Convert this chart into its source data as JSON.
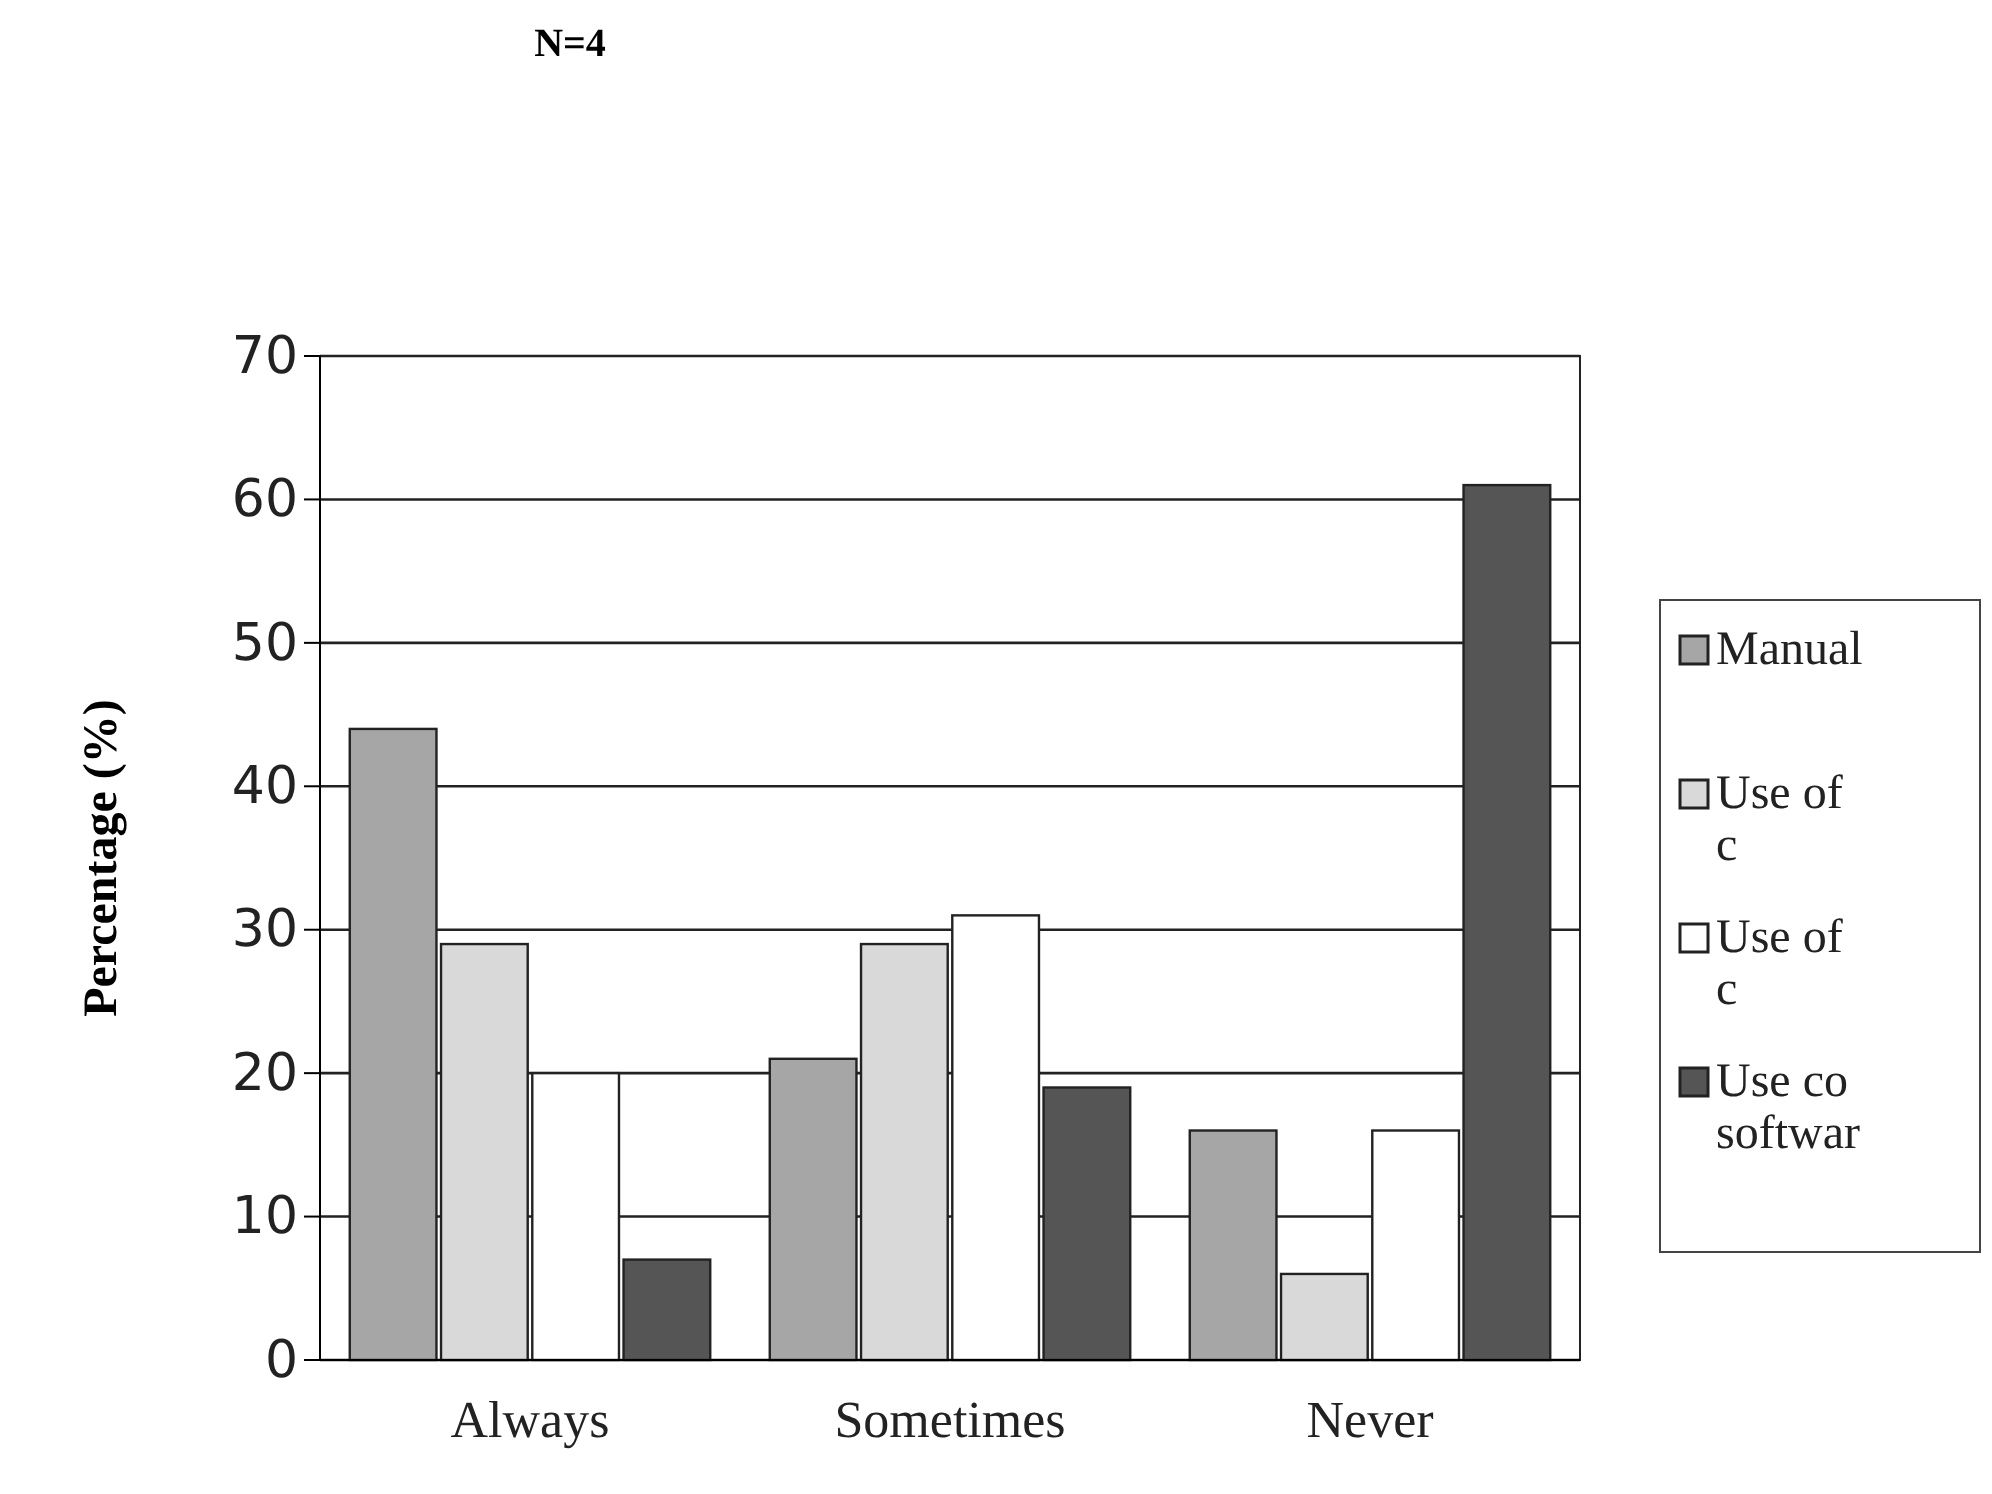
{
  "chart_data": {
    "type": "bar",
    "title": "N=4",
    "ylabel": "Percentage (%)",
    "categories": [
      "Always",
      "Sometimes",
      "Never"
    ],
    "series": [
      {
        "name": "Manual",
        "color": "#a6a6a6",
        "values": [
          44,
          21,
          16
        ]
      },
      {
        "name": "Use of c",
        "color": "#d9d9d9",
        "values": [
          29,
          29,
          6
        ]
      },
      {
        "name": "Use of c",
        "color": "#ffffff",
        "values": [
          20,
          31,
          16
        ]
      },
      {
        "name": "Use co softwar",
        "color": "#555555",
        "values": [
          7,
          19,
          61
        ]
      }
    ],
    "ylim": [
      0,
      70
    ],
    "yticks": [
      0,
      10,
      20,
      30,
      40,
      50,
      60,
      70
    ],
    "grid": "y",
    "legend": "right"
  }
}
